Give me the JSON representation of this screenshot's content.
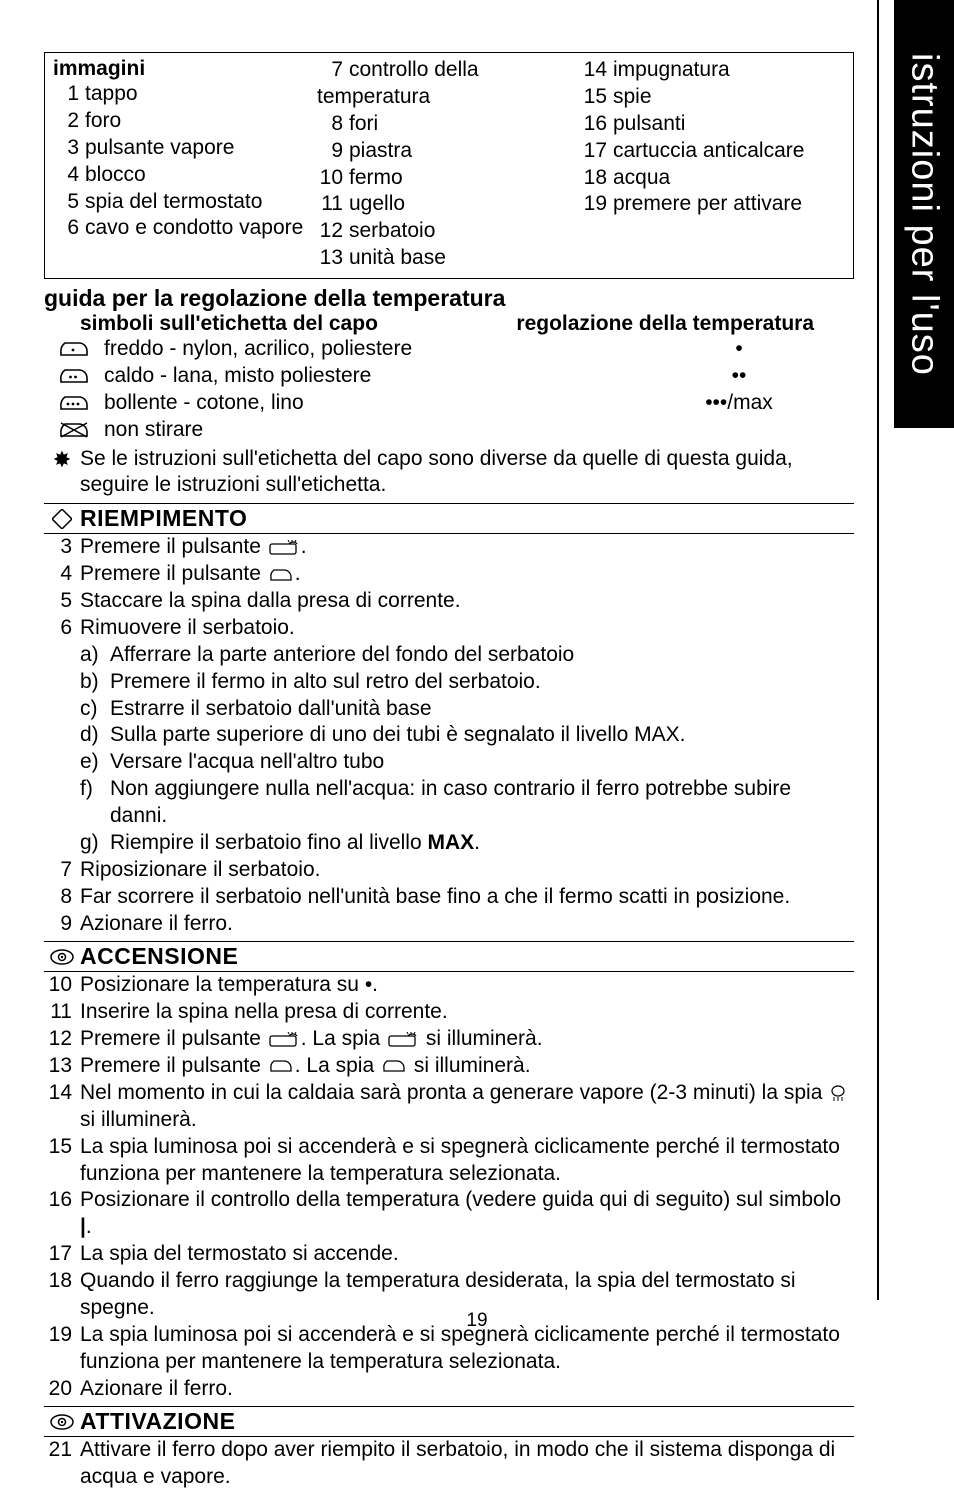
{
  "sideTab": "istruzioni per l'uso",
  "imagesBox": {
    "heading": "immagini",
    "col1": [
      {
        "n": "1",
        "t": "tappo"
      },
      {
        "n": "2",
        "t": "foro"
      },
      {
        "n": "3",
        "t": "pulsante vapore"
      },
      {
        "n": "4",
        "t": "blocco"
      },
      {
        "n": "5",
        "t": "spia del termostato"
      },
      {
        "n": "6",
        "t": "cavo e condotto vapore"
      }
    ],
    "col2": [
      {
        "n": "7",
        "t": "controllo della temperatura"
      },
      {
        "n": "8",
        "t": "fori"
      },
      {
        "n": "9",
        "t": "piastra"
      },
      {
        "n": "10",
        "t": "fermo"
      },
      {
        "n": "11",
        "t": "ugello"
      },
      {
        "n": "12",
        "t": "serbatoio"
      },
      {
        "n": "13",
        "t": "unità base"
      }
    ],
    "col3": [
      {
        "n": "14",
        "t": "impugnatura"
      },
      {
        "n": "15",
        "t": "spie"
      },
      {
        "n": "16",
        "t": "pulsanti"
      },
      {
        "n": "17",
        "t": "cartuccia anticalcare"
      },
      {
        "n": "18",
        "t": "acqua"
      },
      {
        "n": "19",
        "t": "premere per attivare"
      }
    ]
  },
  "tempGuide": {
    "title": "guida per la regolazione della temperatura",
    "leftHead": "simboli sull'etichetta del capo",
    "rightHead": "regolazione della temperatura",
    "rows": [
      {
        "icon": "iron1",
        "label": "freddo - nylon, acrilico, poliestere",
        "dots": "•"
      },
      {
        "icon": "iron2",
        "label": "caldo - lana, misto poliestere",
        "dots": "••"
      },
      {
        "icon": "iron3",
        "label": "bollente - cotone, lino",
        "dots": "•••/max"
      },
      {
        "icon": "ironx",
        "label": "non stirare",
        "dots": ""
      }
    ],
    "note": "Se le istruzioni sull'etichetta del capo sono diverse da quelle di questa guida, seguire le istruzioni sull'etichetta."
  },
  "sec1": {
    "title": "RIEMPIMENTO",
    "steps": [
      {
        "n": "3",
        "t": "Premere il pulsante ",
        "icon": "baseunit",
        "tail": "."
      },
      {
        "n": "4",
        "t": "Premere il pulsante ",
        "icon": "ironmini",
        "tail": "."
      },
      {
        "n": "5",
        "t": "Staccare la spina dalla presa di corrente."
      },
      {
        "n": "6",
        "t": "Rimuovere il serbatoio."
      }
    ],
    "subs": [
      {
        "n": "a)",
        "t": "Afferrare la parte anteriore del fondo del serbatoio"
      },
      {
        "n": "b)",
        "t": "Premere il fermo in alto sul retro del serbatoio."
      },
      {
        "n": "c)",
        "t": "Estrarre il serbatoio dall'unità base"
      },
      {
        "n": "d)",
        "t": "Sulla parte superiore di uno dei tubi è segnalato il livello MAX."
      },
      {
        "n": "e)",
        "t": "Versare l'acqua nell'altro tubo"
      },
      {
        "n": "f)",
        "t": "Non aggiungere nulla nell'acqua: in caso contrario il ferro potrebbe subire danni."
      },
      {
        "n": "g)",
        "t": "Riempire il serbatoio fino al livello ",
        "bold": "MAX",
        "tail": "."
      }
    ],
    "steps2": [
      {
        "n": "7",
        "t": "Riposizionare il serbatoio."
      },
      {
        "n": "8",
        "t": "Far scorrere il serbatoio nell'unità base fino a che il fermo scatti in posizione."
      },
      {
        "n": "9",
        "t": "Azionare il ferro."
      }
    ]
  },
  "sec2": {
    "title": "ACCENSIONE",
    "steps": [
      {
        "n": "10",
        "t": "Posizionare la temperatura su •."
      },
      {
        "n": "11",
        "t": "Inserire la spina nella presa di corrente."
      },
      {
        "n": "12",
        "t": "Premere il pulsante ",
        "icon": "baseunit",
        "mid": ". La spia ",
        "icon2": "baseunit",
        "tail": " si illuminerà."
      },
      {
        "n": "13",
        "t": "Premere il pulsante ",
        "icon": "ironmini",
        "mid": ". La spia ",
        "icon2": "ironmini",
        "tail": " si illuminerà."
      },
      {
        "n": "14",
        "t": "Nel momento in cui la caldaia sarà pronta a generare vapore (2-3 minuti) la spia ",
        "icon": "steam",
        "tail": " si illuminerà."
      },
      {
        "n": "15",
        "t": "La spia luminosa poi si accenderà e si spegnerà ciclicamente perché il termostato funziona per mantenere la temperatura selezionata."
      },
      {
        "n": "16",
        "t": "Posizionare il controllo della temperatura (vedere guida qui di seguito) sul simbolo ",
        "bold": "|",
        "tail": "."
      },
      {
        "n": "17",
        "t": "La spia del termostato si accende."
      },
      {
        "n": "18",
        "t": "Quando il ferro raggiunge la temperatura desiderata, la spia del termostato si spegne."
      },
      {
        "n": "19",
        "t": "La spia luminosa poi si accenderà e si spegnerà ciclicamente perché il termostato funziona per mantenere la temperatura selezionata."
      },
      {
        "n": "20",
        "t": "Azionare il ferro."
      }
    ]
  },
  "sec3": {
    "title": "ATTIVAZIONE",
    "steps": [
      {
        "n": "21",
        "t": "Attivare il ferro dopo aver riempito il serbatoio, in modo che il sistema disponga di acqua e vapore."
      }
    ]
  },
  "pageNumber": "19"
}
